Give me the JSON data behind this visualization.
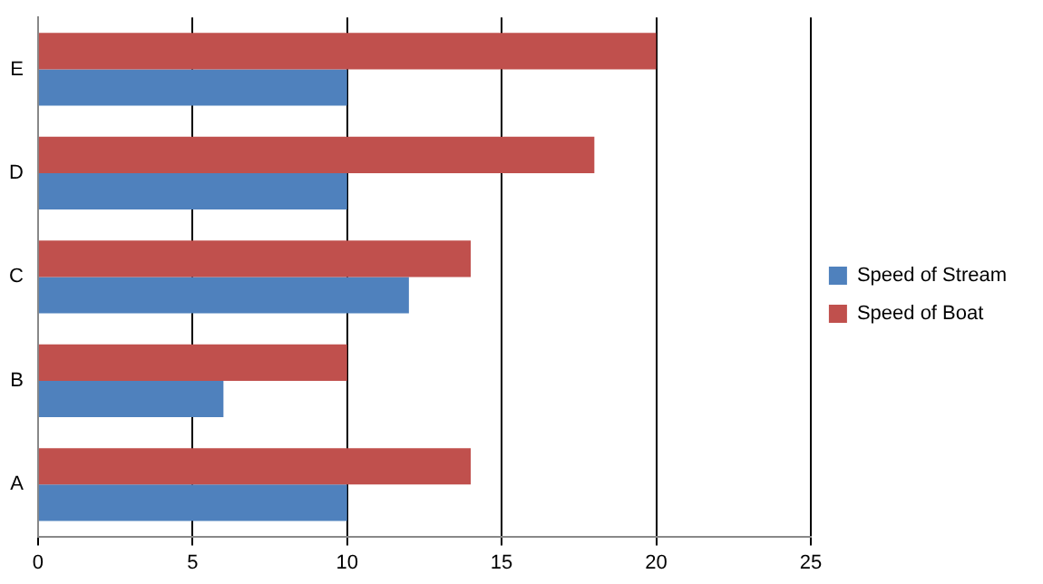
{
  "chart_data": {
    "type": "bar",
    "orientation": "horizontal",
    "categories": [
      "E",
      "D",
      "C",
      "B",
      "A"
    ],
    "series": [
      {
        "name": "Speed of Stream",
        "color": "#4f81bd",
        "values": [
          10,
          10,
          12,
          6,
          10
        ]
      },
      {
        "name": "Speed of Boat",
        "color": "#c0504d",
        "values": [
          20,
          18,
          14,
          10,
          14
        ]
      }
    ],
    "xlim": [
      0,
      25
    ],
    "xticks": [
      0,
      5,
      10,
      15,
      20,
      25
    ],
    "grid": "x",
    "legend": "right"
  }
}
